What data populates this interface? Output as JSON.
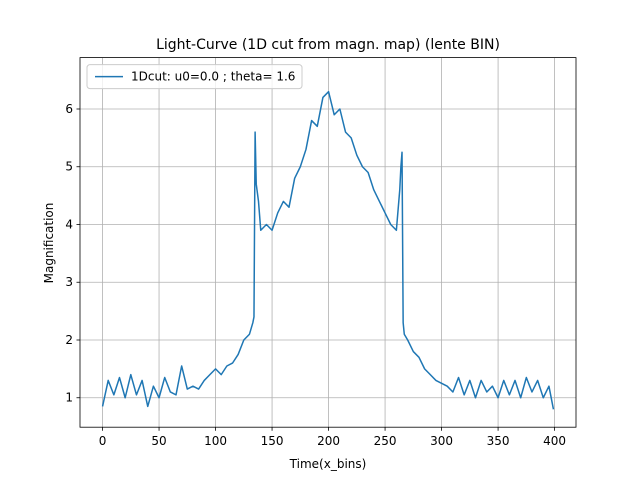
{
  "chart_data": {
    "type": "line",
    "title": "Light-Curve (1D cut from magn. map) (lente BIN)",
    "xlabel": "Time(x_bins)",
    "ylabel": "Magnification",
    "x": [
      0,
      5,
      10,
      15,
      20,
      25,
      30,
      35,
      40,
      45,
      50,
      55,
      60,
      65,
      70,
      75,
      80,
      85,
      90,
      95,
      100,
      105,
      110,
      115,
      120,
      125,
      130,
      133,
      134,
      135,
      136,
      138,
      140,
      145,
      150,
      155,
      160,
      165,
      170,
      175,
      180,
      185,
      190,
      195,
      200,
      205,
      210,
      215,
      220,
      225,
      230,
      235,
      240,
      245,
      250,
      255,
      260,
      263,
      264,
      265,
      266,
      267,
      270,
      275,
      280,
      285,
      290,
      295,
      300,
      305,
      310,
      315,
      320,
      325,
      330,
      335,
      340,
      345,
      350,
      355,
      360,
      365,
      370,
      375,
      380,
      385,
      390,
      395,
      399
    ],
    "series": [
      {
        "name": "1Dcut: u0=0.0 ; theta= 1.6",
        "color": "#1f77b4",
        "values": [
          0.85,
          1.3,
          1.05,
          1.35,
          1.0,
          1.4,
          1.05,
          1.3,
          0.85,
          1.2,
          1.0,
          1.35,
          1.1,
          1.05,
          1.55,
          1.15,
          1.2,
          1.15,
          1.3,
          1.4,
          1.5,
          1.4,
          1.55,
          1.6,
          1.75,
          2.0,
          2.1,
          2.3,
          2.4,
          5.6,
          4.7,
          4.4,
          3.9,
          4.0,
          3.9,
          4.2,
          4.4,
          4.3,
          4.8,
          5.0,
          5.3,
          5.8,
          5.7,
          6.2,
          6.3,
          5.9,
          6.0,
          5.6,
          5.5,
          5.2,
          5.0,
          4.9,
          4.6,
          4.4,
          4.2,
          4.0,
          3.9,
          4.6,
          5.0,
          5.25,
          2.3,
          2.1,
          2.0,
          1.8,
          1.7,
          1.5,
          1.4,
          1.3,
          1.25,
          1.2,
          1.1,
          1.35,
          1.05,
          1.3,
          1.0,
          1.3,
          1.1,
          1.2,
          1.0,
          1.3,
          1.05,
          1.3,
          1.0,
          1.35,
          1.1,
          1.3,
          1.0,
          1.2,
          0.8
        ]
      }
    ],
    "xlim": [
      -19.95,
      418.95
    ],
    "ylim": [
      0.49,
      6.89
    ],
    "xticks": [
      0,
      50,
      100,
      150,
      200,
      250,
      300,
      350,
      400
    ],
    "yticks": [
      1,
      2,
      3,
      4,
      5,
      6
    ],
    "grid": true,
    "legend": "upper left"
  }
}
